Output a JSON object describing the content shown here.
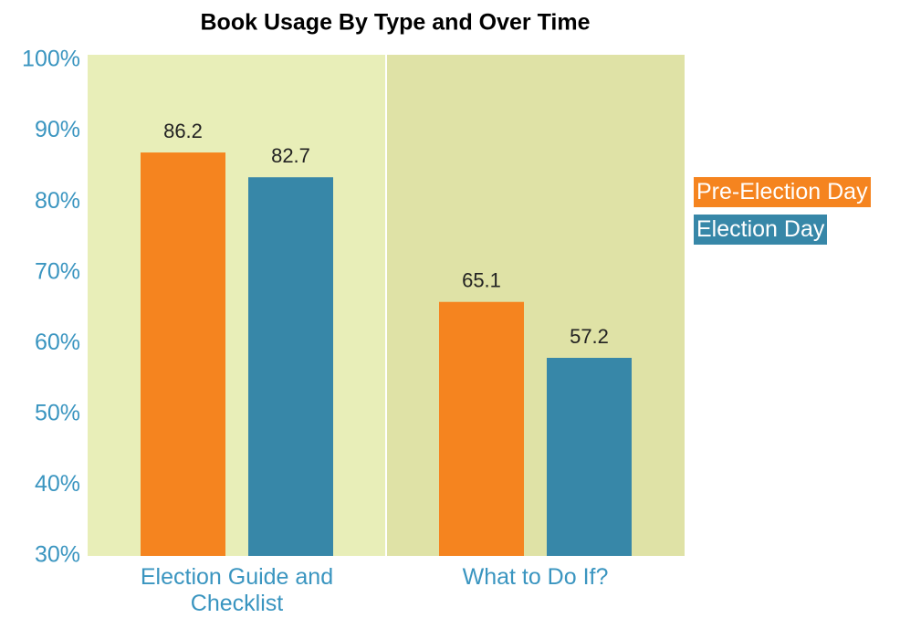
{
  "chart_data": {
    "type": "bar",
    "title": "Book Usage By Type and Over Time",
    "categories": [
      "Election Guide and Checklist",
      "What to Do If?"
    ],
    "series": [
      {
        "name": "Pre-Election Day",
        "color": "#f5841f",
        "values": [
          86.2,
          65.1
        ]
      },
      {
        "name": "Election Day",
        "color": "#3787a8",
        "values": [
          82.7,
          57.2
        ]
      }
    ],
    "ylim": [
      30,
      100
    ],
    "yticks": [
      {
        "value": 30,
        "label": "30%"
      },
      {
        "value": 40,
        "label": "40%"
      },
      {
        "value": 50,
        "label": "50%"
      },
      {
        "value": 60,
        "label": "60%"
      },
      {
        "value": 70,
        "label": "70%"
      },
      {
        "value": 80,
        "label": "80%"
      },
      {
        "value": 90,
        "label": "90%"
      },
      {
        "value": 100,
        "label": "100%"
      }
    ],
    "legend": "right"
  }
}
